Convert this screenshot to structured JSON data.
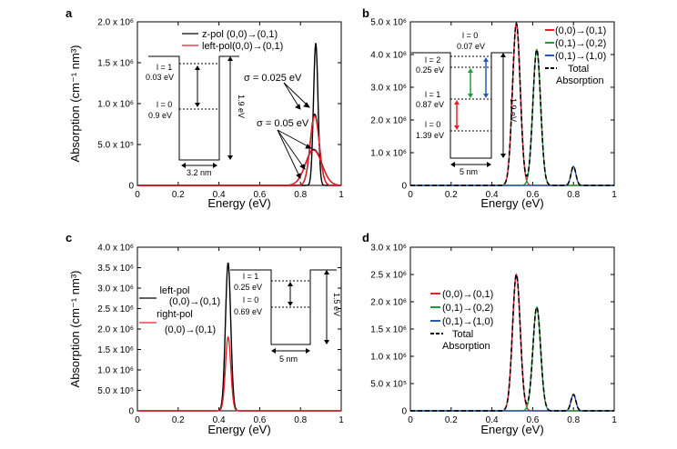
{
  "figure": {
    "ylabel": "Absorption (cm⁻¹ nm³)",
    "xlabel": "Energy (eV)"
  },
  "chart_data": [
    {
      "id": "a",
      "type": "line",
      "panel_label": "a",
      "xlabel": "Energy (eV)",
      "ylabel": "Absorption (cm⁻¹ nm³)",
      "xlim": [
        0,
        1
      ],
      "ylim": [
        0,
        2000000
      ],
      "x_ticks": [
        "0",
        "0.2",
        "0.4",
        "0.6",
        "0.8",
        "1"
      ],
      "y_ticks": [
        "0",
        "5.0 x 10⁵",
        "1.0 x 10⁶",
        "1.5 x 10⁶",
        "2.0 x 10⁶"
      ],
      "series": [
        {
          "name": "z-pol (0,0)→(0,1)",
          "color": "#000000",
          "peaks": [
            {
              "center": 0.875,
              "height": 1740000,
              "width": 0.011
            }
          ]
        },
        {
          "name": "z-pol (0,0)→(0,1)",
          "color": "#000000",
          "peaks": [
            {
              "center": 0.87,
              "height": 870000,
              "width": 0.022
            }
          ]
        },
        {
          "name": "z-pol (0,0)→(0,1)",
          "color": "#000000",
          "peaks": [
            {
              "center": 0.865,
              "height": 440000,
              "width": 0.04
            }
          ]
        },
        {
          "name": "left-pol(0,0)→(0,1)",
          "color": "#e8202a",
          "peaks": [
            {
              "center": 0.87,
              "height": 850000,
              "width": 0.022
            }
          ]
        },
        {
          "name": "left-pol(0,0)→(0,1)",
          "color": "#e8202a",
          "peaks": [
            {
              "center": 0.865,
              "height": 430000,
              "width": 0.04
            }
          ]
        }
      ],
      "annotations": [
        "σ = 0.025 eV",
        "σ = 0.05 eV"
      ],
      "inset": {
        "levels": [
          "l = 1",
          "0.03 eV",
          "l = 0",
          "0.9 eV"
        ],
        "height_label": "1.9 eV",
        "width_label": "3.2 nm"
      }
    },
    {
      "id": "b",
      "type": "line",
      "panel_label": "b",
      "xlabel": "Energy (eV)",
      "xlim": [
        0,
        1
      ],
      "ylim": [
        0,
        5000000
      ],
      "x_ticks": [
        "0",
        "0.2",
        "0.4",
        "0.6",
        "0.8",
        "1"
      ],
      "y_ticks": [
        "0",
        "1.0 x 10⁶",
        "2.0 x 10⁶",
        "3.0 x 10⁶",
        "4.0 x 10⁶",
        "5.0 x 10⁶"
      ],
      "series": [
        {
          "name": "(0,0)→(0,1)",
          "color": "#e8202a",
          "peaks": [
            {
              "center": 0.52,
              "height": 4950000,
              "width": 0.019
            }
          ]
        },
        {
          "name": "(0,1)→(0,2)",
          "color": "#1f9a3a",
          "peaks": [
            {
              "center": 0.62,
              "height": 4150000,
              "width": 0.019
            }
          ]
        },
        {
          "name": "(0,1)→(1,0)",
          "color": "#2458b8",
          "peaks": [
            {
              "center": 0.8,
              "height": 580000,
              "width": 0.012
            }
          ]
        },
        {
          "name": "Total Absorption",
          "color": "#000000",
          "dashed": true
        }
      ],
      "legend_total": [
        "Total",
        "Absorption"
      ],
      "inset": {
        "levels": [
          "l = 0",
          "0.07 eV",
          "l = 2",
          "0.25 eV",
          "l = 1",
          "0.87 eV",
          "l = 0",
          "1.39 eV"
        ],
        "height_label": "1.9 eV",
        "width_label": "5 nm"
      }
    },
    {
      "id": "c",
      "type": "line",
      "panel_label": "c",
      "xlabel": "Energy (eV)",
      "ylabel": "Absorption (cm⁻¹ nm³)",
      "xlim": [
        0,
        1
      ],
      "ylim": [
        0,
        4000000
      ],
      "x_ticks": [
        "0",
        "0.2",
        "0.4",
        "0.6",
        "0.8",
        "1"
      ],
      "y_ticks": [
        "0",
        "5.0 x 10⁵",
        "1.0 x 10⁶",
        "1.5 x 10⁶",
        "2.0 x 10⁶",
        "2.5 x 10⁶",
        "3.0 x 10⁶",
        "3.5 x 10⁶",
        "4.0 x 10⁶"
      ],
      "series": [
        {
          "name": "left-pol (0,0)→(0,1)",
          "color": "#000000",
          "peaks": [
            {
              "center": 0.445,
              "height": 3620000,
              "width": 0.013
            }
          ]
        },
        {
          "name": "right-pol (0,0)→(0,1)",
          "color": "#e8202a",
          "peaks": [
            {
              "center": 0.445,
              "height": 1810000,
              "width": 0.013
            }
          ]
        }
      ],
      "legend_lines": [
        "left-pol",
        "(0,0)→(0,1)",
        "right-pol",
        "(0,0)→(0,1)"
      ],
      "inset": {
        "levels": [
          "l = 1",
          "0.25 eV",
          "l = 0",
          "0.69 eV"
        ],
        "height_label": "1.5 eV",
        "width_label": "5 nm"
      }
    },
    {
      "id": "d",
      "type": "line",
      "panel_label": "d",
      "xlabel": "Energy (eV)",
      "xlim": [
        0,
        1
      ],
      "ylim": [
        0,
        3000000
      ],
      "x_ticks": [
        "0",
        "0.2",
        "0.4",
        "0.6",
        "0.8",
        "1"
      ],
      "y_ticks": [
        "0",
        "5.0 x 10⁵",
        "1.0 x 10⁶",
        "1.5 x 10⁶",
        "2.0 x 10⁶",
        "2.5 x 10⁶",
        "3.0 x 10⁶"
      ],
      "series": [
        {
          "name": "(0,0)→(0,1)",
          "color": "#e8202a",
          "peaks": [
            {
              "center": 0.52,
              "height": 2500000,
              "width": 0.019
            }
          ]
        },
        {
          "name": "(0,1)→(0,2)",
          "color": "#1f9a3a",
          "peaks": [
            {
              "center": 0.62,
              "height": 1900000,
              "width": 0.019
            }
          ]
        },
        {
          "name": "(0,1)→(1,0)",
          "color": "#2458b8",
          "peaks": [
            {
              "center": 0.8,
              "height": 300000,
              "width": 0.012
            }
          ]
        },
        {
          "name": "Total Absorption",
          "color": "#000000",
          "dashed": true
        }
      ],
      "legend_total": [
        "Total",
        "Absorption"
      ]
    }
  ]
}
